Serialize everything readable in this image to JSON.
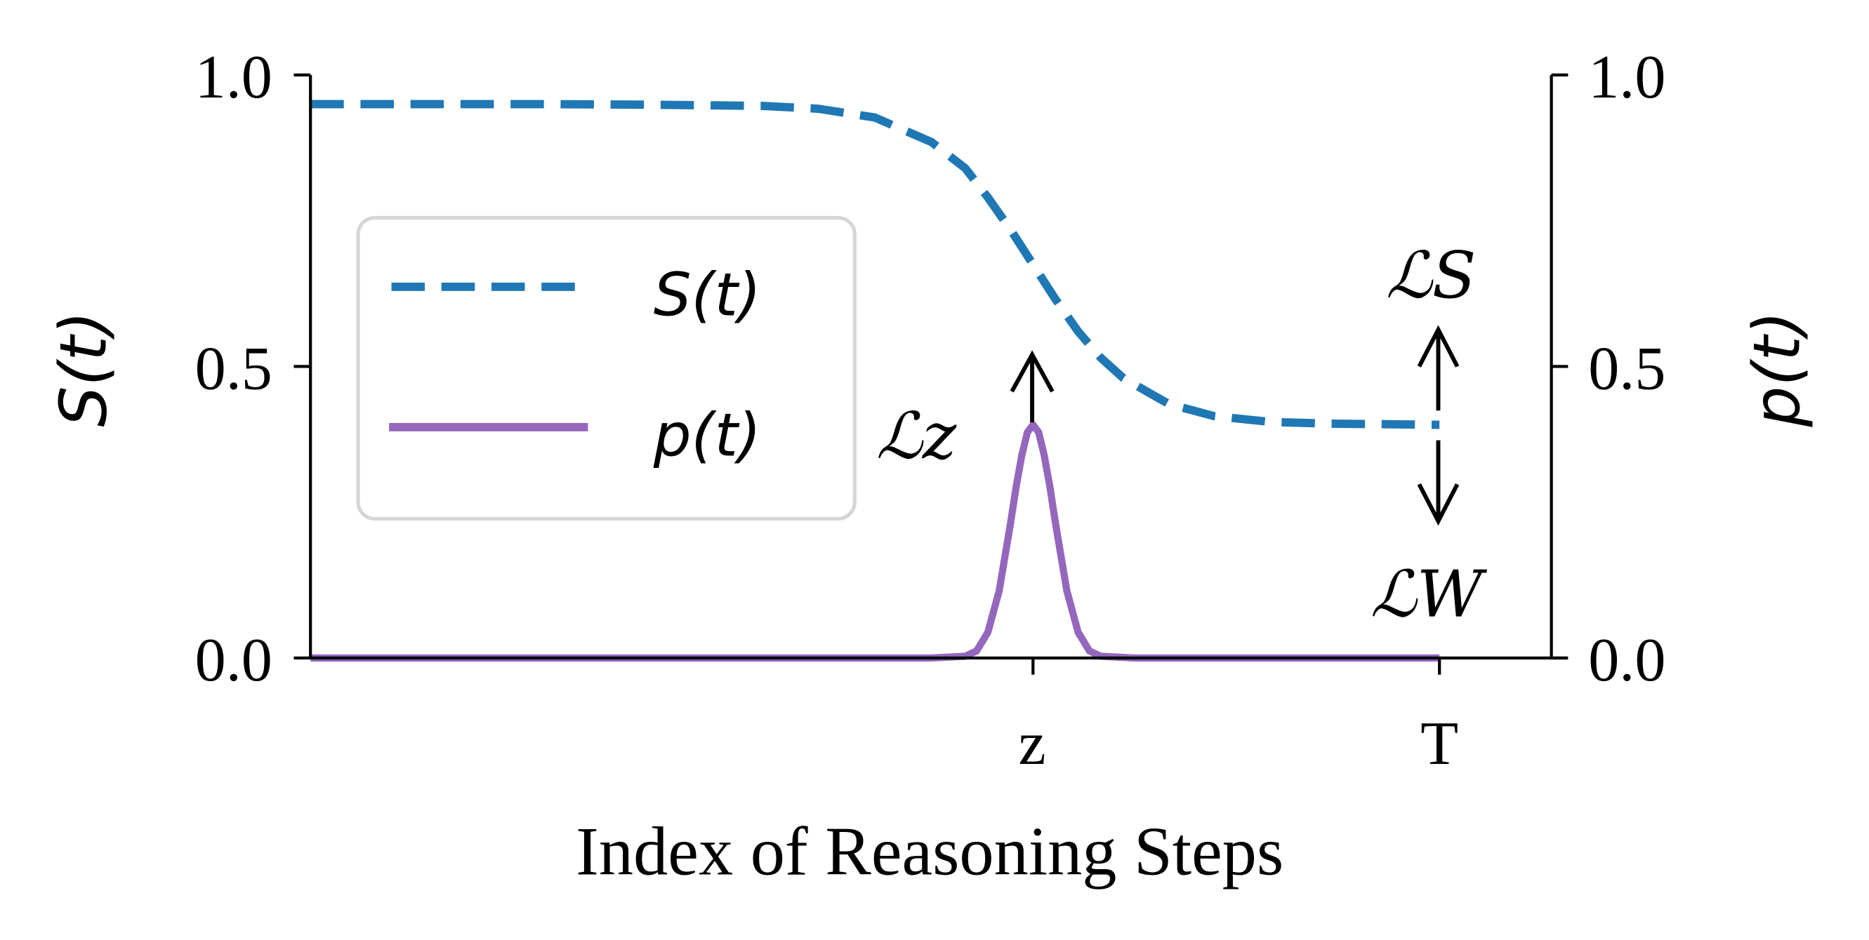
{
  "chart_data": {
    "type": "line",
    "xlabel": "Index of Reasoning Steps",
    "ylabel_left": "S(t)",
    "ylabel_right": "p(t)",
    "x_ticks": [
      {
        "label": "z",
        "value": 0.64
      },
      {
        "label": "T",
        "value": 1.0
      }
    ],
    "xlim": [
      0,
      1.11
    ],
    "ylim_left": [
      0,
      1
    ],
    "ylim_right": [
      0,
      1
    ],
    "y_ticks_left": [
      "0.0",
      "0.5",
      "1.0"
    ],
    "y_ticks_right": [
      "0.0",
      "0.5",
      "1.0"
    ],
    "y_tick_values": [
      0,
      0.5,
      1.0
    ],
    "grid": false,
    "legend_position": "center-left",
    "series": [
      {
        "name": "S(t)",
        "axis": "left",
        "style": "dashed",
        "color": "#1f77b4",
        "x": [
          0,
          0.1,
          0.2,
          0.3,
          0.4,
          0.45,
          0.5,
          0.55,
          0.58,
          0.6,
          0.62,
          0.64,
          0.66,
          0.68,
          0.7,
          0.72,
          0.76,
          0.8,
          0.85,
          0.9,
          0.95,
          1.0
        ],
        "y": [
          0.95,
          0.95,
          0.95,
          0.949,
          0.947,
          0.942,
          0.927,
          0.885,
          0.84,
          0.79,
          0.735,
          0.675,
          0.615,
          0.56,
          0.515,
          0.48,
          0.436,
          0.415,
          0.405,
          0.402,
          0.401,
          0.4
        ]
      },
      {
        "name": "p(t)",
        "axis": "right",
        "style": "solid",
        "color": "#9467bd",
        "x": [
          0,
          0.55,
          0.58,
          0.59,
          0.6,
          0.61,
          0.62,
          0.625,
          0.63,
          0.635,
          0.64,
          0.645,
          0.65,
          0.655,
          0.66,
          0.67,
          0.68,
          0.69,
          0.7,
          0.73,
          1.0
        ],
        "y": [
          0,
          0,
          0.003,
          0.012,
          0.044,
          0.115,
          0.23,
          0.293,
          0.347,
          0.387,
          0.4,
          0.387,
          0.347,
          0.293,
          0.23,
          0.115,
          0.044,
          0.012,
          0.003,
          0,
          0
        ]
      }
    ],
    "annotations": [
      {
        "text": "ℒz",
        "arrow": "up",
        "at": "z"
      },
      {
        "text": "ℒS",
        "arrow": "up",
        "at": "T"
      },
      {
        "text": "ℒW",
        "arrow": "down",
        "at": "T"
      }
    ]
  }
}
